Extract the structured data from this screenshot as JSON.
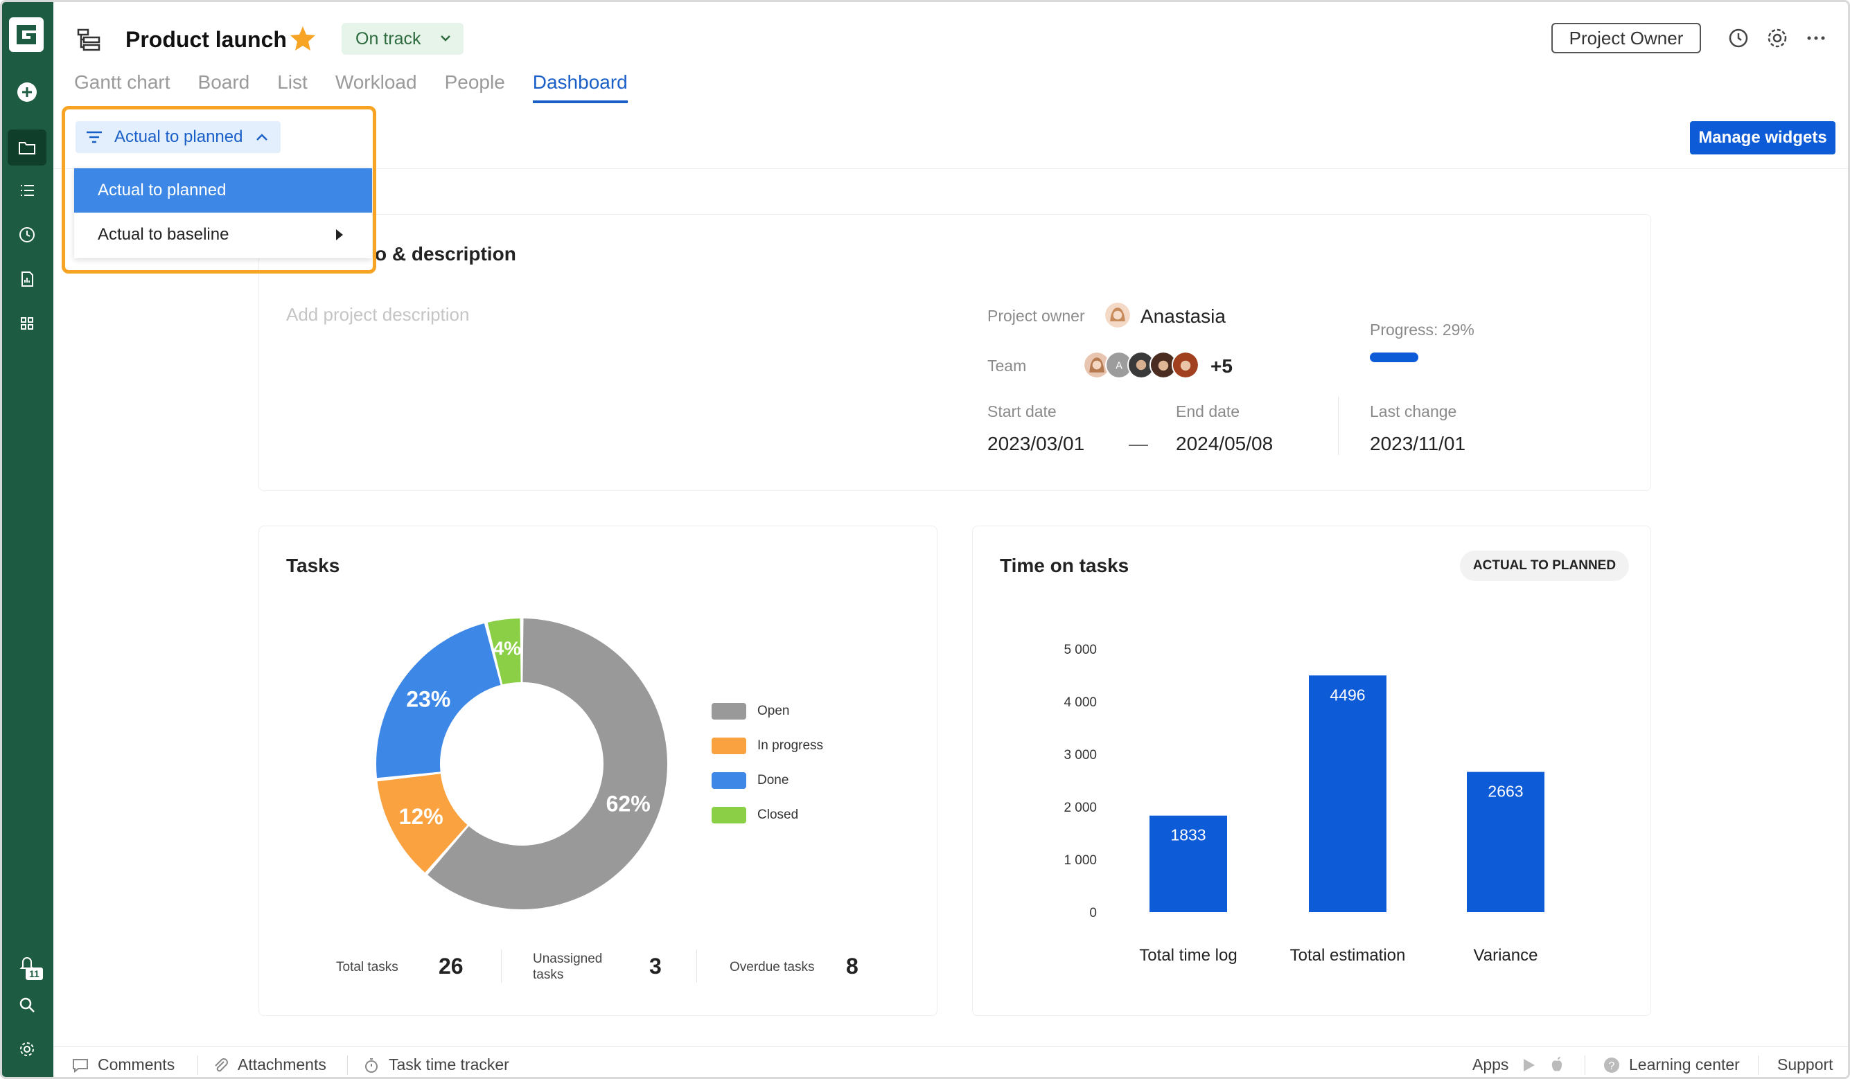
{
  "header": {
    "title": "Product launch",
    "status": "On track",
    "owner_button": "Project Owner"
  },
  "tabs": [
    {
      "label": "Gantt chart"
    },
    {
      "label": "Board"
    },
    {
      "label": "List"
    },
    {
      "label": "Workload"
    },
    {
      "label": "People"
    },
    {
      "label": "Dashboard",
      "active": true
    }
  ],
  "filter": {
    "label": "Actual to planned",
    "options": [
      {
        "label": "Actual to planned",
        "selected": true
      },
      {
        "label": "Actual to baseline",
        "submenu": true
      }
    ]
  },
  "manage_widgets": "Manage widgets",
  "info": {
    "title_visible": "o & description",
    "description_placeholder": "Add project description",
    "owner_label": "Project owner",
    "owner_name": "Anastasia",
    "team_label": "Team",
    "team_extra": "+5",
    "progress_label": "Progress: 29%",
    "progress_value": 0.29,
    "start_label": "Start date",
    "start_value": "2023/03/01",
    "dash": "—",
    "end_label": "End date",
    "end_value": "2024/05/08",
    "last_change_label": "Last change",
    "last_change_value": "2023/11/01"
  },
  "tasks": {
    "title": "Tasks",
    "legend": [
      {
        "label": "Open",
        "color": "#999999"
      },
      {
        "label": "In progress",
        "color": "#f9a23f"
      },
      {
        "label": "Done",
        "color": "#3d87e6"
      },
      {
        "label": "Closed",
        "color": "#8bcf46"
      }
    ],
    "stats": {
      "total_label": "Total tasks",
      "total_value": "26",
      "unassigned_label_1": "Unassigned",
      "unassigned_label_2": "tasks",
      "unassigned_value": "3",
      "overdue_label": "Overdue tasks",
      "overdue_value": "8"
    }
  },
  "time": {
    "title": "Time on tasks",
    "badge": "ACTUAL TO PLANNED",
    "y_ticks": [
      "5 000",
      "4 000",
      "3 000",
      "2 000",
      "1 000",
      "0"
    ]
  },
  "chart_data": [
    {
      "type": "pie",
      "categories": [
        "Open",
        "In progress",
        "Done",
        "Closed"
      ],
      "values": [
        62,
        12,
        23,
        4
      ],
      "labels": [
        "62%",
        "12%",
        "23%",
        "4%"
      ],
      "colors": [
        "#999999",
        "#f9a23f",
        "#3d87e6",
        "#8bcf46"
      ],
      "title": "Tasks",
      "legend": "right"
    },
    {
      "type": "bar",
      "categories": [
        "Total time log",
        "Total estimation",
        "Variance"
      ],
      "values": [
        1833,
        4496,
        2663
      ],
      "title": "Time on tasks",
      "ylim": [
        0,
        5000
      ],
      "color": "#0d5bd7",
      "grid": false
    }
  ],
  "sidebar": {
    "notifications_badge": "11"
  },
  "bottom": {
    "comments": "Comments",
    "attachments": "Attachments",
    "tracker": "Task time tracker",
    "apps": "Apps",
    "learning": "Learning center",
    "support": "Support"
  }
}
